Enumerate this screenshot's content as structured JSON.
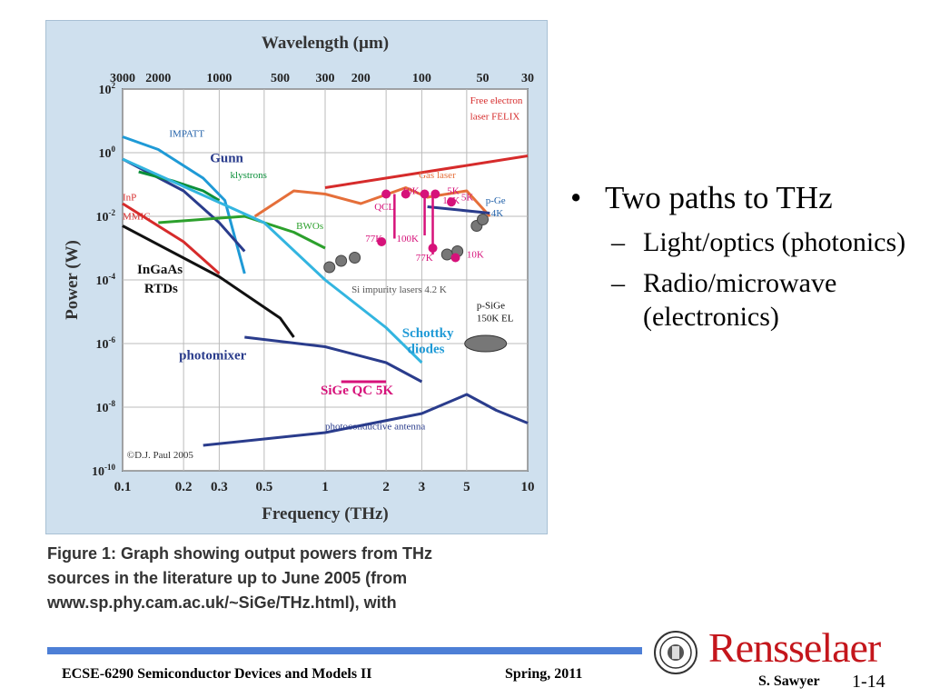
{
  "chart_data": {
    "type": "line",
    "title": "Wavelength (µm)",
    "xlabel": "Frequency (THz)",
    "ylabel": "Power (W)",
    "x_scale": "log",
    "y_scale": "log",
    "xlim": [
      0.1,
      10
    ],
    "ylim_exp": [
      -10,
      2
    ],
    "x_ticks": [
      "0.1",
      "0.2",
      "0.3",
      "0.5",
      "1",
      "2",
      "3",
      "5",
      "10"
    ],
    "x_tick_values": [
      0.1,
      0.2,
      0.3,
      0.5,
      1,
      2,
      3,
      5,
      10
    ],
    "top_ticks": [
      "3000",
      "2000",
      "1000",
      "500",
      "300",
      "200",
      "100",
      "50",
      "30"
    ],
    "top_tick_freq": [
      0.1,
      0.15,
      0.3,
      0.6,
      1,
      1.5,
      3,
      6,
      10
    ],
    "y_ticks": [
      {
        "base": "10",
        "exp": "2",
        "value": 2
      },
      {
        "base": "10",
        "exp": "0",
        "value": 0
      },
      {
        "base": "10",
        "exp": "-2",
        "value": -2
      },
      {
        "base": "10",
        "exp": "-4",
        "value": -4
      },
      {
        "base": "10",
        "exp": "-6",
        "value": -6
      },
      {
        "base": "10",
        "exp": "-8",
        "value": -8
      },
      {
        "base": "10",
        "exp": "-10",
        "value": -10
      }
    ],
    "grid": true,
    "series": [
      {
        "name": "Free electron laser FELIX",
        "color": "#d62b2b",
        "points": [
          [
            1,
            -1.1
          ],
          [
            10,
            -0.1
          ]
        ]
      },
      {
        "name": "IMPATT",
        "color": "#1f9ad6",
        "points": [
          [
            0.1,
            0.5
          ],
          [
            0.15,
            0.1
          ],
          [
            0.25,
            -0.8
          ],
          [
            0.32,
            -1.5
          ],
          [
            0.4,
            -3.8
          ]
        ]
      },
      {
        "name": "Gunn",
        "color": "#2a3c8c",
        "points": [
          [
            0.1,
            -0.2
          ],
          [
            0.2,
            -1.2
          ],
          [
            0.3,
            -2.2
          ],
          [
            0.4,
            -3.1
          ]
        ]
      },
      {
        "name": "klystrons",
        "color": "#0b8f3a",
        "points": [
          [
            0.12,
            -0.6
          ],
          [
            0.18,
            -0.9
          ],
          [
            0.25,
            -1.2
          ],
          [
            0.3,
            -1.5
          ]
        ]
      },
      {
        "name": "InP MMIC",
        "color": "#d62b2b",
        "points": [
          [
            0.1,
            -1.6
          ],
          [
            0.2,
            -2.8
          ],
          [
            0.3,
            -3.8
          ]
        ]
      },
      {
        "name": "InGaAs RTDs",
        "color": "#111111",
        "points": [
          [
            0.1,
            -2.3
          ],
          [
            0.3,
            -3.9
          ],
          [
            0.6,
            -5.2
          ],
          [
            0.7,
            -5.8
          ]
        ]
      },
      {
        "name": "BWOs",
        "color": "#2ca02c",
        "points": [
          [
            0.15,
            -2.2
          ],
          [
            0.4,
            -2.0
          ],
          [
            0.7,
            -2.5
          ],
          [
            1.0,
            -3.0
          ]
        ]
      },
      {
        "name": "Schottky diodes",
        "color": "#33b5e0",
        "points": [
          [
            0.1,
            -0.2
          ],
          [
            0.5,
            -2.2
          ],
          [
            1.0,
            -4.0
          ],
          [
            2.0,
            -5.5
          ],
          [
            3.0,
            -6.6
          ]
        ]
      },
      {
        "name": "Gas laser",
        "color": "#e56f3a",
        "points": [
          [
            0.45,
            -2.0
          ],
          [
            0.7,
            -1.2
          ],
          [
            1.0,
            -1.3
          ],
          [
            1.5,
            -1.6
          ],
          [
            2.5,
            -1.1
          ],
          [
            3.2,
            -1.4
          ],
          [
            5,
            -1.2
          ],
          [
            6.5,
            -2.0
          ]
        ]
      },
      {
        "name": "photomixer",
        "color": "#2a3c8c",
        "points": [
          [
            0.4,
            -5.8
          ],
          [
            1.0,
            -6.1
          ],
          [
            2.0,
            -6.6
          ],
          [
            3.0,
            -7.2
          ]
        ]
      },
      {
        "name": "SiGe QC 5K",
        "color": "#d6127a",
        "points": [
          [
            1.2,
            -7.2
          ],
          [
            2.0,
            -7.2
          ]
        ]
      },
      {
        "name": "photoconductive antenna",
        "color": "#2a3c8c",
        "points": [
          [
            0.25,
            -9.2
          ],
          [
            1,
            -8.8
          ],
          [
            3,
            -8.2
          ],
          [
            5,
            -7.6
          ],
          [
            7,
            -8.1
          ],
          [
            10,
            -8.5
          ]
        ]
      },
      {
        "name": "p-Ge 4K",
        "color": "#2a3c8c",
        "points": [
          [
            3.2,
            -1.7
          ],
          [
            6.5,
            -1.9
          ]
        ]
      }
    ],
    "annotations": [
      {
        "text": "Free electron",
        "freq": 5.2,
        "exp": 1.55,
        "color": "#d62b2b"
      },
      {
        "text": "laser FELIX",
        "freq": 5.2,
        "exp": 1.05,
        "color": "#d62b2b"
      },
      {
        "text": "IMPATT",
        "freq": 0.17,
        "exp": 0.5,
        "color": "#1f5fa8"
      },
      {
        "text": "Gunn",
        "freq": 0.27,
        "exp": -0.3,
        "color": "#2a3c8c",
        "big": true
      },
      {
        "text": "klystrons",
        "freq": 0.34,
        "exp": -0.8,
        "color": "#0b8f3a"
      },
      {
        "text": "InP",
        "freq": 0.1,
        "exp": -1.5,
        "color": "#d62b2b"
      },
      {
        "text": "MMIC",
        "freq": 0.1,
        "exp": -2.1,
        "color": "#d62b2b"
      },
      {
        "text": "Gas laser",
        "freq": 2.9,
        "exp": -0.8,
        "color": "#e56f3a"
      },
      {
        "text": "QCL",
        "freq": 1.75,
        "exp": -1.8,
        "color": "#d6127a"
      },
      {
        "text": "10K",
        "freq": 2.4,
        "exp": -1.3,
        "color": "#d6127a"
      },
      {
        "text": "5K",
        "freq": 4.0,
        "exp": -1.3,
        "color": "#d6127a"
      },
      {
        "text": "10K",
        "freq": 3.8,
        "exp": -1.6,
        "color": "#d6127a"
      },
      {
        "text": "5K",
        "freq": 4.7,
        "exp": -1.5,
        "color": "#d6127a"
      },
      {
        "text": "p-Ge",
        "freq": 6.2,
        "exp": -1.6,
        "color": "#1f5fa8"
      },
      {
        "text": "4K",
        "freq": 6.6,
        "exp": -2.0,
        "color": "#1f5fa8"
      },
      {
        "text": "BWOs",
        "freq": 0.72,
        "exp": -2.4,
        "color": "#2ca02c"
      },
      {
        "text": "77K",
        "freq": 1.58,
        "exp": -2.8,
        "color": "#d6127a"
      },
      {
        "text": "100K",
        "freq": 2.25,
        "exp": -2.8,
        "color": "#d6127a"
      },
      {
        "text": "77K",
        "freq": 2.8,
        "exp": -3.4,
        "color": "#d6127a"
      },
      {
        "text": "10K",
        "freq": 5.0,
        "exp": -3.3,
        "color": "#d6127a"
      },
      {
        "text": "InGaAs",
        "freq": 0.118,
        "exp": -3.8,
        "color": "#111111",
        "big": true
      },
      {
        "text": "RTDs",
        "freq": 0.128,
        "exp": -4.4,
        "color": "#111111",
        "big": true
      },
      {
        "text": "Si impurity lasers 4.2 K",
        "freq": 1.35,
        "exp": -4.4,
        "color": "#555555"
      },
      {
        "text": "p-SiGe",
        "freq": 5.6,
        "exp": -4.9,
        "color": "#111111"
      },
      {
        "text": "150K EL",
        "freq": 5.6,
        "exp": -5.3,
        "color": "#111111"
      },
      {
        "text": "Schottky",
        "freq": 2.4,
        "exp": -5.8,
        "color": "#1f9ad6",
        "big": true
      },
      {
        "text": "diodes",
        "freq": 2.55,
        "exp": -6.3,
        "color": "#1f9ad6",
        "big": true
      },
      {
        "text": "photomixer",
        "freq": 0.19,
        "exp": -6.5,
        "color": "#2a3c8c",
        "big": true
      },
      {
        "text": "SiGe QC 5K",
        "freq": 0.95,
        "exp": -7.6,
        "color": "#d6127a",
        "big": true
      },
      {
        "text": "photoconductive antenna",
        "freq": 1.0,
        "exp": -8.7,
        "color": "#2a3c8c"
      },
      {
        "text": "©D.J. Paul 2005",
        "freq": 0.105,
        "exp": -9.6,
        "color": "#333333"
      }
    ],
    "markers": {
      "gray": [
        [
          1.05,
          -3.6
        ],
        [
          1.2,
          -3.4
        ],
        [
          1.4,
          -3.3
        ],
        [
          4.0,
          -3.2
        ],
        [
          4.5,
          -3.1
        ],
        [
          5.6,
          -2.3
        ],
        [
          6.0,
          -2.1
        ]
      ],
      "pink": [
        [
          2.0,
          -1.3
        ],
        [
          2.5,
          -1.3
        ],
        [
          3.1,
          -1.3
        ],
        [
          3.5,
          -1.3
        ],
        [
          4.2,
          -1.55
        ],
        [
          1.9,
          -2.8
        ],
        [
          3.4,
          -3.0
        ],
        [
          4.4,
          -3.3
        ]
      ],
      "pink_lines": [
        [
          [
            2.2,
            -1.3
          ],
          [
            2.2,
            -2.7
          ]
        ],
        [
          [
            3.4,
            -1.3
          ],
          [
            3.4,
            -3.2
          ]
        ],
        [
          [
            3.1,
            -1.3
          ],
          [
            3.1,
            -2.6
          ]
        ]
      ]
    }
  },
  "caption": {
    "line1": "Figure 1: Graph showing output powers from THz",
    "line2": "sources in the literature up to June 2005 (from",
    "line3": "www.sp.phy.cam.ac.uk/~SiGe/THz.html), with"
  },
  "bullets": {
    "main": "Two paths to THz",
    "sub1": "Light/optics (photonics)",
    "sub2": "Radio/microwave (electronics)"
  },
  "footer": {
    "course": "ECSE-6290 Semiconductor Devices and Models II",
    "term": "Spring, 2011",
    "author": "S. Sawyer",
    "page": "1-14",
    "logo_text": "Rensselaer"
  }
}
